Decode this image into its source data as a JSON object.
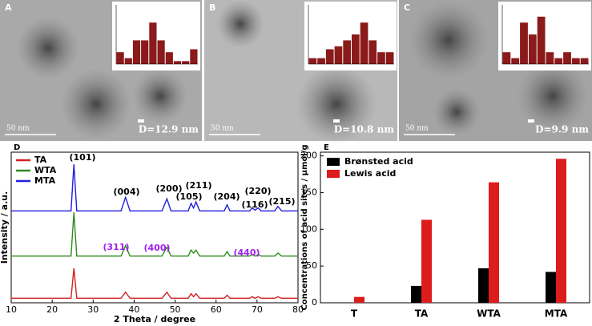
{
  "panels": [
    {
      "label": "A",
      "scale_bar": "50 nm",
      "size": "D=12.9 nm"
    },
    {
      "label": "B",
      "scale_bar": "50 nm",
      "size": "D=10.8 nm"
    },
    {
      "label": "C",
      "scale_bar": "50 nm",
      "size": "D=9.9 nm"
    }
  ],
  "chart_data": [
    {
      "type": "bar",
      "color": "#8b1a1a",
      "ylim": [
        0,
        10
      ],
      "values": [
        2,
        1,
        4,
        4,
        7,
        4,
        2,
        0.5,
        0.5,
        2.5
      ]
    },
    {
      "type": "bar",
      "color": "#8b1a1a",
      "ylim": [
        0,
        10
      ],
      "values": [
        1,
        1,
        2.5,
        3,
        4,
        5,
        7,
        4,
        2,
        2
      ]
    },
    {
      "type": "bar",
      "color": "#8b1a1a",
      "ylim": [
        0,
        10
      ],
      "values": [
        2,
        1,
        7,
        5,
        8,
        2,
        1,
        2,
        1,
        1
      ]
    },
    {
      "type": "line",
      "label": "D",
      "x_label": "2 Theta / degree",
      "y_label": "Intensity / a.u.",
      "xlim": [
        10,
        80
      ],
      "xticks": [
        10,
        20,
        30,
        40,
        50,
        60,
        70,
        80
      ],
      "ylim": [
        0,
        100
      ],
      "legend": "top-left",
      "x": [
        10,
        24.6,
        25.3,
        26,
        36.8,
        37.9,
        39,
        46.8,
        48,
        49,
        53.2,
        53.9,
        54.5,
        55.1,
        56,
        62,
        62.7,
        63.4,
        68.2,
        68.8,
        69.5,
        70.3,
        71,
        74.3,
        75.1,
        76,
        80
      ],
      "series": [
        {
          "name": "TA",
          "color": "#d42020",
          "values": [
            3,
            3,
            23,
            3,
            3,
            7,
            3,
            3,
            7,
            3,
            3,
            6,
            4,
            6,
            3,
            3,
            5,
            3,
            3,
            4,
            3,
            4,
            3,
            3,
            4,
            3,
            3
          ]
        },
        {
          "name": "WTA",
          "color": "#2e8b1e",
          "values": [
            31,
            31,
            60,
            31,
            31,
            38,
            31,
            31,
            37,
            31,
            31,
            35,
            33,
            35,
            31,
            31,
            34,
            31,
            31,
            32,
            31,
            32,
            31,
            31,
            33,
            31,
            31
          ]
        },
        {
          "name": "MTA",
          "color": "#2020e0",
          "values": [
            61,
            61,
            92,
            61,
            61,
            70,
            61,
            61,
            69,
            61,
            61,
            66,
            63,
            67,
            61,
            61,
            65,
            61,
            61,
            63,
            61.5,
            63,
            61,
            61,
            64,
            61,
            61
          ]
        }
      ],
      "annotations": [
        {
          "text": "(101)",
          "color": "#000000"
        },
        {
          "text": "(004)",
          "color": "#000000"
        },
        {
          "text": "(200)",
          "color": "#000000"
        },
        {
          "text": "(105)",
          "color": "#000000"
        },
        {
          "text": "(211)",
          "color": "#000000"
        },
        {
          "text": "(204)",
          "color": "#000000"
        },
        {
          "text": "(116)",
          "color": "#000000"
        },
        {
          "text": "(220)",
          "color": "#000000"
        },
        {
          "text": "(215)",
          "color": "#000000"
        },
        {
          "text": "(311)",
          "color": "#a020f0"
        },
        {
          "text": "(400)",
          "color": "#a020f0"
        },
        {
          "text": "(440)",
          "color": "#a020f0"
        }
      ]
    },
    {
      "type": "grouped-bar",
      "label": "E",
      "y_label": "Concentrations of acid sites / μmol/g",
      "categories": [
        "T",
        "TA",
        "WTA",
        "MTA"
      ],
      "ylim": [
        0,
        205
      ],
      "yticks": [
        0,
        50,
        100,
        150,
        200
      ],
      "legend": "top-left",
      "series": [
        {
          "name": "Brønsted acid",
          "color": "#000000",
          "values": [
            0,
            23,
            47,
            42
          ]
        },
        {
          "name": "Lewis acid",
          "color": "#dd1c1c",
          "values": [
            8,
            113,
            164,
            196
          ]
        }
      ]
    }
  ]
}
